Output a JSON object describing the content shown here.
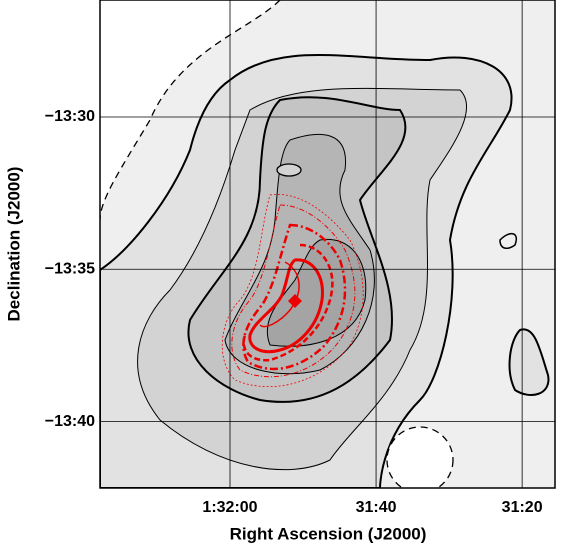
{
  "chart_data": {
    "type": "contour",
    "x_label": "Right Ascension (J2000)",
    "y_label": "Declination (J2000)",
    "xlim": [
      5537.8,
      5475.5
    ],
    "ylim": [
      -13.703,
      -13.436
    ],
    "xticks": [
      {
        "value": 5520,
        "label": "1:32:00"
      },
      {
        "value": 5500,
        "label": "31:40"
      },
      {
        "value": 5480,
        "label": "31:20"
      }
    ],
    "yticks": [
      {
        "value": -13.5,
        "label": "−13:30"
      },
      {
        "value": -13.5833,
        "label": "−13:35"
      },
      {
        "value": -13.6667,
        "label": "−13:40"
      }
    ],
    "grid": true
  }
}
